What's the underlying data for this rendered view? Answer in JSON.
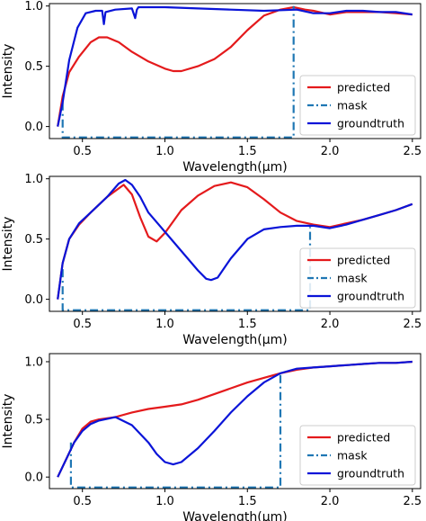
{
  "chart_data": [
    {
      "type": "line",
      "xlabel": "Wavelength(μm)",
      "ylabel": "Intensity",
      "xlim": [
        0.3,
        2.55
      ],
      "ylim": [
        -0.1,
        1.02
      ],
      "xticks": [
        0.5,
        1.0,
        1.5,
        2.0,
        2.5
      ],
      "yticks": [
        0.0,
        0.5,
        1.0
      ],
      "xtick_labels": [
        "0.5",
        "1.0",
        "1.5",
        "2.0",
        "2.5"
      ],
      "ytick_labels": [
        "0.0",
        "0.5",
        "1.0"
      ],
      "grid": false,
      "legend_position": "lower-right",
      "legend_entries": [
        "predicted",
        "mask",
        "groundtruth"
      ],
      "series": [
        {
          "name": "predicted",
          "color": "#e41a1c",
          "style": "solid",
          "x": [
            0.35,
            0.38,
            0.42,
            0.48,
            0.55,
            0.6,
            0.65,
            0.72,
            0.8,
            0.9,
            1.0,
            1.05,
            1.1,
            1.2,
            1.3,
            1.4,
            1.5,
            1.6,
            1.7,
            1.78,
            1.85,
            1.9,
            2.0,
            2.1,
            2.2,
            2.3,
            2.4,
            2.5
          ],
          "y": [
            0.0,
            0.25,
            0.45,
            0.58,
            0.7,
            0.74,
            0.74,
            0.7,
            0.62,
            0.54,
            0.48,
            0.46,
            0.46,
            0.5,
            0.56,
            0.66,
            0.8,
            0.92,
            0.97,
            0.99,
            0.97,
            0.96,
            0.93,
            0.95,
            0.95,
            0.95,
            0.94,
            0.93
          ]
        },
        {
          "name": "mask",
          "color": "#1f77b4",
          "style": "dashdot",
          "x": [
            0.38,
            0.38,
            1.78,
            1.78
          ],
          "y": [
            0.2,
            -0.09,
            -0.09,
            1.0
          ]
        },
        {
          "name": "groundtruth",
          "color": "#0a14d8",
          "style": "solid",
          "x": [
            0.35,
            0.38,
            0.42,
            0.47,
            0.52,
            0.58,
            0.62,
            0.63,
            0.64,
            0.7,
            0.8,
            0.82,
            0.83,
            0.84,
            0.9,
            1.0,
            1.2,
            1.4,
            1.6,
            1.8,
            1.9,
            2.0,
            2.1,
            2.2,
            2.3,
            2.4,
            2.5
          ],
          "y": [
            0.0,
            0.2,
            0.55,
            0.82,
            0.94,
            0.96,
            0.96,
            0.85,
            0.95,
            0.97,
            0.98,
            0.9,
            0.97,
            0.99,
            0.99,
            0.99,
            0.98,
            0.97,
            0.96,
            0.97,
            0.94,
            0.94,
            0.96,
            0.96,
            0.95,
            0.95,
            0.93
          ]
        }
      ]
    },
    {
      "type": "line",
      "xlabel": "Wavelength(μm)",
      "ylabel": "Intensity",
      "xlim": [
        0.3,
        2.55
      ],
      "ylim": [
        -0.1,
        1.02
      ],
      "xticks": [
        0.5,
        1.0,
        1.5,
        2.0,
        2.5
      ],
      "yticks": [
        0.0,
        0.5,
        1.0
      ],
      "xtick_labels": [
        "0.5",
        "1.0",
        "1.5",
        "2.0",
        "2.5"
      ],
      "ytick_labels": [
        "0.0",
        "0.5",
        "1.0"
      ],
      "grid": false,
      "legend_position": "lower-right",
      "legend_entries": [
        "predicted",
        "mask",
        "groundtruth"
      ],
      "series": [
        {
          "name": "predicted",
          "color": "#e41a1c",
          "style": "solid",
          "x": [
            0.35,
            0.38,
            0.42,
            0.48,
            0.55,
            0.65,
            0.75,
            0.8,
            0.85,
            0.9,
            0.95,
            1.0,
            1.1,
            1.2,
            1.3,
            1.4,
            1.5,
            1.6,
            1.7,
            1.8,
            1.9,
            2.0,
            2.1,
            2.2,
            2.3,
            2.4,
            2.5
          ],
          "y": [
            0.0,
            0.3,
            0.5,
            0.62,
            0.72,
            0.85,
            0.95,
            0.87,
            0.68,
            0.52,
            0.48,
            0.55,
            0.74,
            0.86,
            0.94,
            0.97,
            0.93,
            0.83,
            0.72,
            0.65,
            0.62,
            0.6,
            0.63,
            0.66,
            0.7,
            0.74,
            0.79
          ]
        },
        {
          "name": "mask",
          "color": "#1f77b4",
          "style": "dashdot",
          "x": [
            0.38,
            0.38,
            1.88,
            1.88
          ],
          "y": [
            0.25,
            -0.09,
            -0.09,
            0.6
          ]
        },
        {
          "name": "groundtruth",
          "color": "#0a14d8",
          "style": "solid",
          "x": [
            0.35,
            0.38,
            0.42,
            0.48,
            0.55,
            0.65,
            0.72,
            0.76,
            0.8,
            0.85,
            0.9,
            1.0,
            1.1,
            1.2,
            1.25,
            1.28,
            1.32,
            1.4,
            1.5,
            1.6,
            1.7,
            1.8,
            1.9,
            2.0,
            2.1,
            2.2,
            2.3,
            2.4,
            2.5
          ],
          "y": [
            0.0,
            0.3,
            0.5,
            0.63,
            0.72,
            0.85,
            0.96,
            0.99,
            0.95,
            0.85,
            0.72,
            0.56,
            0.4,
            0.24,
            0.17,
            0.16,
            0.18,
            0.34,
            0.5,
            0.58,
            0.6,
            0.61,
            0.61,
            0.59,
            0.62,
            0.66,
            0.7,
            0.74,
            0.79
          ]
        }
      ]
    },
    {
      "type": "line",
      "xlabel": "Wavelength(μm)",
      "ylabel": "Intensity",
      "xlim": [
        0.3,
        2.55
      ],
      "ylim": [
        -0.1,
        1.07
      ],
      "xticks": [
        0.5,
        1.0,
        1.5,
        2.0,
        2.5
      ],
      "yticks": [
        0.0,
        0.5,
        1.0
      ],
      "xtick_labels": [
        "0.5",
        "1.0",
        "1.5",
        "2.0",
        "2.5"
      ],
      "ytick_labels": [
        "0.0",
        "0.5",
        "1.0"
      ],
      "grid": false,
      "legend_position": "lower-right",
      "legend_entries": [
        "predicted",
        "mask",
        "groundtruth"
      ],
      "series": [
        {
          "name": "predicted",
          "color": "#e41a1c",
          "style": "solid",
          "x": [
            0.35,
            0.4,
            0.45,
            0.5,
            0.55,
            0.6,
            0.7,
            0.8,
            0.9,
            1.0,
            1.1,
            1.2,
            1.3,
            1.4,
            1.5,
            1.6,
            1.7,
            1.8,
            1.9,
            2.0,
            2.1,
            2.2,
            2.3,
            2.4,
            2.5
          ],
          "y": [
            0.0,
            0.15,
            0.3,
            0.42,
            0.48,
            0.5,
            0.52,
            0.56,
            0.59,
            0.61,
            0.63,
            0.67,
            0.72,
            0.77,
            0.82,
            0.86,
            0.9,
            0.93,
            0.95,
            0.96,
            0.97,
            0.98,
            0.99,
            0.99,
            1.0
          ]
        },
        {
          "name": "mask",
          "color": "#1f77b4",
          "style": "dashdot",
          "x": [
            0.43,
            0.43,
            1.7,
            1.7
          ],
          "y": [
            0.3,
            -0.09,
            -0.09,
            0.9
          ]
        },
        {
          "name": "groundtruth",
          "color": "#0a14d8",
          "style": "solid",
          "x": [
            0.35,
            0.4,
            0.45,
            0.5,
            0.55,
            0.6,
            0.7,
            0.8,
            0.9,
            0.95,
            1.0,
            1.05,
            1.1,
            1.2,
            1.3,
            1.4,
            1.5,
            1.6,
            1.7,
            1.8,
            1.9,
            2.0,
            2.1,
            2.2,
            2.3,
            2.4,
            2.5
          ],
          "y": [
            0.0,
            0.15,
            0.3,
            0.4,
            0.46,
            0.49,
            0.52,
            0.45,
            0.3,
            0.2,
            0.13,
            0.11,
            0.13,
            0.25,
            0.4,
            0.56,
            0.7,
            0.82,
            0.9,
            0.94,
            0.95,
            0.96,
            0.97,
            0.98,
            0.99,
            0.99,
            1.0
          ]
        }
      ]
    }
  ]
}
